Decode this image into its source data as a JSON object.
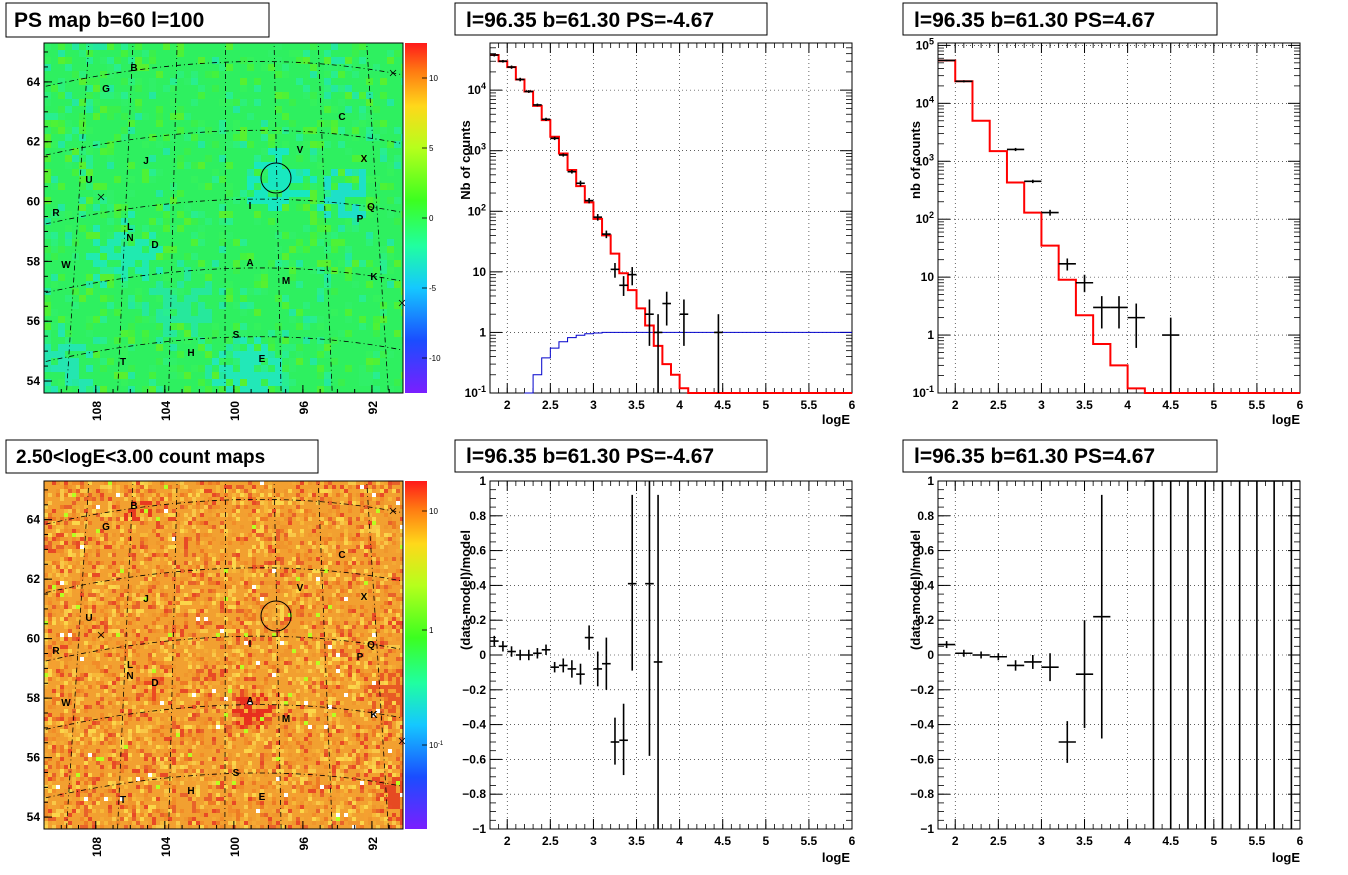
{
  "chart_data": [
    {
      "id": "psmap",
      "type": "heatmap",
      "title": "PS map b=60 l=100",
      "ylim": [
        53.6,
        65.3
      ],
      "xlim": [
        111,
        90.2
      ],
      "xticks": [
        "108",
        "104",
        "100",
        "96",
        "92"
      ],
      "yticks": [
        "54",
        "56",
        "58",
        "60",
        "62",
        "64"
      ],
      "colorbar": {
        "ticks": [
          "10",
          "5",
          "0",
          "-5",
          "-10"
        ],
        "range": [
          -12.5,
          12.5
        ]
      },
      "sources": [
        "B",
        "G",
        "C",
        "V",
        "X",
        "J",
        "U",
        "R",
        "Q",
        "P",
        "L",
        "N",
        "D",
        "I",
        "W",
        "A",
        "K",
        "M",
        "S",
        "H",
        "E",
        "T"
      ],
      "circle_label": "source circle at l=96.35 b=61.30"
    },
    {
      "id": "countmap",
      "type": "heatmap",
      "title": "2.50<logE<3.00 count maps",
      "ylim": [
        53.6,
        65.3
      ],
      "xlim": [
        111,
        90.2
      ],
      "xticks": [
        "108",
        "104",
        "100",
        "96",
        "92"
      ],
      "yticks": [
        "54",
        "56",
        "58",
        "60",
        "62",
        "64"
      ],
      "colorbar": {
        "ticks": [
          "10",
          "1",
          "10^-1"
        ],
        "scale": "log"
      },
      "sources": [
        "B",
        "G",
        "C",
        "V",
        "X",
        "J",
        "U",
        "R",
        "Q",
        "P",
        "L",
        "N",
        "D",
        "I",
        "W",
        "A",
        "K",
        "M",
        "S",
        "H",
        "E",
        "T"
      ]
    },
    {
      "id": "spec_neg",
      "type": "line",
      "title": "l=96.35 b=61.30 PS=-4.67",
      "xlabel": "logE",
      "ylabel": "Nb of counts",
      "yscale": "log",
      "xlim": [
        1.8,
        6
      ],
      "ylim": [
        0.1,
        60000
      ],
      "xticks": [
        "2",
        "2.5",
        "3",
        "3.5",
        "4",
        "4.5",
        "5",
        "5.5",
        "6"
      ],
      "yticks": [
        "10^-1",
        "1",
        "10",
        "10^2",
        "10^3",
        "10^4"
      ],
      "model_edges": [
        1.8,
        1.9,
        2.0,
        2.1,
        2.2,
        2.3,
        2.4,
        2.5,
        2.6,
        2.7,
        2.8,
        2.9,
        3.0,
        3.1,
        3.2,
        3.3,
        3.4,
        3.5,
        3.6,
        3.7,
        3.8,
        3.9,
        4.0,
        4.1,
        4.2,
        4.3,
        6.0
      ],
      "model_values": [
        38000,
        30000,
        24000,
        15000,
        9500,
        5500,
        3200,
        1700,
        900,
        480,
        260,
        140,
        75,
        40,
        20,
        9.5,
        5,
        2.5,
        1.3,
        0.6,
        0.3,
        0.2,
        0.12,
        0.1,
        0.08,
        0.08
      ],
      "acceptance": {
        "x": [
          2.25,
          2.35,
          2.45,
          2.55,
          2.65,
          2.75,
          2.85,
          2.95,
          3.05,
          3.15,
          3.3,
          6.0
        ],
        "y": [
          0.1,
          0.2,
          0.38,
          0.55,
          0.7,
          0.82,
          0.9,
          0.95,
          0.98,
          1.0,
          1.0,
          1.0
        ]
      },
      "data_points": [
        {
          "x": 1.85,
          "y": 38000,
          "ylo": 36000,
          "yhi": 40000
        },
        {
          "x": 1.95,
          "y": 30000,
          "ylo": 28500,
          "yhi": 31500
        },
        {
          "x": 2.05,
          "y": 24000,
          "ylo": 22500,
          "yhi": 25500
        },
        {
          "x": 2.15,
          "y": 15000,
          "ylo": 14000,
          "yhi": 16000
        },
        {
          "x": 2.25,
          "y": 9500,
          "ylo": 9000,
          "yhi": 10000
        },
        {
          "x": 2.35,
          "y": 5700,
          "ylo": 5400,
          "yhi": 6000
        },
        {
          "x": 2.45,
          "y": 3300,
          "ylo": 3100,
          "yhi": 3500
        },
        {
          "x": 2.55,
          "y": 1600,
          "ylo": 1500,
          "yhi": 1700
        },
        {
          "x": 2.65,
          "y": 850,
          "ylo": 800,
          "yhi": 900
        },
        {
          "x": 2.75,
          "y": 450,
          "ylo": 420,
          "yhi": 480
        },
        {
          "x": 2.85,
          "y": 290,
          "ylo": 260,
          "yhi": 320
        },
        {
          "x": 2.95,
          "y": 150,
          "ylo": 135,
          "yhi": 165
        },
        {
          "x": 3.05,
          "y": 80,
          "ylo": 70,
          "yhi": 90
        },
        {
          "x": 3.15,
          "y": 42,
          "ylo": 36,
          "yhi": 48
        },
        {
          "x": 3.25,
          "y": 11,
          "ylo": 8,
          "yhi": 14
        },
        {
          "x": 3.35,
          "y": 6,
          "ylo": 4,
          "yhi": 8.5
        },
        {
          "x": 3.45,
          "y": 9,
          "ylo": 6,
          "yhi": 12
        },
        {
          "x": 3.65,
          "y": 2,
          "ylo": 0.6,
          "yhi": 3.5
        },
        {
          "x": 3.75,
          "y": 1,
          "ylo": 0.1,
          "yhi": 2
        },
        {
          "x": 3.85,
          "y": 3,
          "ylo": 1.3,
          "yhi": 4.7
        },
        {
          "x": 4.05,
          "y": 2,
          "ylo": 0.6,
          "yhi": 3.5
        },
        {
          "x": 4.45,
          "y": 1,
          "ylo": 0.1,
          "yhi": 2
        }
      ]
    },
    {
      "id": "spec_pos",
      "type": "line",
      "title": "l=96.35 b=61.30 PS=4.67",
      "xlabel": "logE",
      "ylabel": "nb of counts",
      "yscale": "log",
      "xlim": [
        1.8,
        6
      ],
      "ylim": [
        0.1,
        110000
      ],
      "xticks": [
        "2",
        "2.5",
        "3",
        "3.5",
        "4",
        "4.5",
        "5",
        "5.5",
        "6"
      ],
      "yticks": [
        "10^-1",
        "1",
        "10",
        "10^2",
        "10^3",
        "10^4",
        "10^5"
      ],
      "model_edges": [
        1.8,
        2.0,
        2.2,
        2.4,
        2.6,
        2.8,
        3.0,
        3.2,
        3.4,
        3.6,
        3.8,
        4.0,
        4.2,
        6.0
      ],
      "model_values": [
        55000,
        24000,
        5000,
        1500,
        430,
        130,
        35,
        9,
        2.2,
        0.7,
        0.3,
        0.12,
        0.1
      ],
      "data_points": [
        {
          "x": 1.9,
          "y": 55000,
          "ylo": 53000,
          "yhi": 57000
        },
        {
          "x": 2.1,
          "y": 24000,
          "ylo": 23000,
          "yhi": 25000
        },
        {
          "x": 2.7,
          "y": 1600,
          "ylo": 1500,
          "yhi": 1700
        },
        {
          "x": 2.9,
          "y": 450,
          "ylo": 420,
          "yhi": 480
        },
        {
          "x": 3.1,
          "y": 130,
          "ylo": 115,
          "yhi": 145
        },
        {
          "x": 3.3,
          "y": 17,
          "ylo": 13,
          "yhi": 21
        },
        {
          "x": 3.5,
          "y": 8,
          "ylo": 5.5,
          "yhi": 11
        },
        {
          "x": 3.7,
          "y": 3,
          "ylo": 1.3,
          "yhi": 4.7
        },
        {
          "x": 3.9,
          "y": 3,
          "ylo": 1.3,
          "yhi": 4.7
        },
        {
          "x": 4.1,
          "y": 2,
          "ylo": 0.6,
          "yhi": 3.5
        },
        {
          "x": 4.5,
          "y": 1,
          "ylo": 0.1,
          "yhi": 2
        }
      ]
    },
    {
      "id": "res_neg",
      "type": "scatter",
      "title": "l=96.35 b=61.30 PS=-4.67",
      "xlabel": "logE",
      "ylabel": "(data-model)/model",
      "xlim": [
        1.8,
        6
      ],
      "ylim": [
        -1,
        1
      ],
      "xticks": [
        "2",
        "2.5",
        "3",
        "3.5",
        "4",
        "4.5",
        "5",
        "5.5",
        "6"
      ],
      "yticks": [
        "1",
        "0.8",
        "0.6",
        "0.4",
        "0.2",
        "0",
        "-0.2",
        "-0.4",
        "-0.6",
        "-0.8",
        "-1"
      ],
      "data_points": [
        {
          "x": 1.85,
          "y": 0.08,
          "ylo": 0.05,
          "yhi": 0.11
        },
        {
          "x": 1.95,
          "y": 0.05,
          "ylo": 0.02,
          "yhi": 0.08
        },
        {
          "x": 2.05,
          "y": 0.02,
          "ylo": -0.01,
          "yhi": 0.05
        },
        {
          "x": 2.15,
          "y": 0.0,
          "ylo": -0.03,
          "yhi": 0.03
        },
        {
          "x": 2.25,
          "y": 0.0,
          "ylo": -0.03,
          "yhi": 0.03
        },
        {
          "x": 2.35,
          "y": 0.01,
          "ylo": -0.02,
          "yhi": 0.04
        },
        {
          "x": 2.45,
          "y": 0.03,
          "ylo": 0.0,
          "yhi": 0.06
        },
        {
          "x": 2.55,
          "y": -0.07,
          "ylo": -0.1,
          "yhi": -0.04
        },
        {
          "x": 2.65,
          "y": -0.06,
          "ylo": -0.1,
          "yhi": -0.02
        },
        {
          "x": 2.75,
          "y": -0.08,
          "ylo": -0.13,
          "yhi": -0.03
        },
        {
          "x": 2.85,
          "y": -0.11,
          "ylo": -0.17,
          "yhi": -0.05
        },
        {
          "x": 2.95,
          "y": 0.1,
          "ylo": 0.03,
          "yhi": 0.17
        },
        {
          "x": 3.05,
          "y": -0.08,
          "ylo": -0.18,
          "yhi": 0.02
        },
        {
          "x": 3.15,
          "y": -0.05,
          "ylo": -0.2,
          "yhi": 0.1
        },
        {
          "x": 3.25,
          "y": -0.5,
          "ylo": -0.63,
          "yhi": -0.36
        },
        {
          "x": 3.35,
          "y": -0.49,
          "ylo": -0.69,
          "yhi": -0.28
        },
        {
          "x": 3.45,
          "y": 0.41,
          "ylo": -0.09,
          "yhi": 0.92
        },
        {
          "x": 3.65,
          "y": 0.41,
          "ylo": -0.58,
          "yhi": 1.0
        },
        {
          "x": 3.75,
          "y": -0.04,
          "ylo": -1.0,
          "yhi": 0.92
        }
      ]
    },
    {
      "id": "res_pos",
      "type": "scatter",
      "title": "l=96.35 b=61.30 PS=4.67",
      "xlabel": "logE",
      "ylabel": "(data-model)/model",
      "xlim": [
        1.8,
        6
      ],
      "ylim": [
        -1,
        1
      ],
      "xticks": [
        "2",
        "2.5",
        "3",
        "3.5",
        "4",
        "4.5",
        "5",
        "5.5",
        "6"
      ],
      "yticks": [
        "1",
        "0.8",
        "0.6",
        "0.4",
        "0.2",
        "0",
        "-0.2",
        "-0.4",
        "-0.6",
        "-0.8",
        "-1"
      ],
      "data_points": [
        {
          "x": 1.9,
          "y": 0.06,
          "ylo": 0.04,
          "yhi": 0.08
        },
        {
          "x": 2.1,
          "y": 0.01,
          "ylo": -0.01,
          "yhi": 0.03
        },
        {
          "x": 2.3,
          "y": 0.0,
          "ylo": -0.02,
          "yhi": 0.02
        },
        {
          "x": 2.5,
          "y": -0.01,
          "ylo": -0.03,
          "yhi": 0.01
        },
        {
          "x": 2.7,
          "y": -0.06,
          "ylo": -0.09,
          "yhi": -0.03
        },
        {
          "x": 2.9,
          "y": -0.04,
          "ylo": -0.08,
          "yhi": 0.0
        },
        {
          "x": 3.1,
          "y": -0.07,
          "ylo": -0.15,
          "yhi": 0.01
        },
        {
          "x": 3.3,
          "y": -0.5,
          "ylo": -0.62,
          "yhi": -0.38
        },
        {
          "x": 3.5,
          "y": -0.11,
          "ylo": -0.42,
          "yhi": 0.2
        },
        {
          "x": 3.7,
          "y": 0.22,
          "ylo": -0.48,
          "yhi": 0.92
        },
        {
          "x": 4.3,
          "y": 1.0,
          "ylo": -1.0,
          "yhi": 1.0
        },
        {
          "x": 4.5,
          "y": 1.0,
          "ylo": -1.0,
          "yhi": 1.0
        },
        {
          "x": 4.7,
          "y": 1.0,
          "ylo": -1.0,
          "yhi": 1.0
        },
        {
          "x": 4.9,
          "y": 1.0,
          "ylo": -1.0,
          "yhi": 1.0
        },
        {
          "x": 5.1,
          "y": 1.0,
          "ylo": -1.0,
          "yhi": 1.0
        },
        {
          "x": 5.3,
          "y": 1.0,
          "ylo": -1.0,
          "yhi": 1.0
        },
        {
          "x": 5.5,
          "y": 1.0,
          "ylo": -1.0,
          "yhi": 1.0
        },
        {
          "x": 5.7,
          "y": 1.0,
          "ylo": -1.0,
          "yhi": 1.0
        },
        {
          "x": 5.9,
          "y": 1.0,
          "ylo": -1.0,
          "yhi": 1.0
        }
      ]
    }
  ]
}
